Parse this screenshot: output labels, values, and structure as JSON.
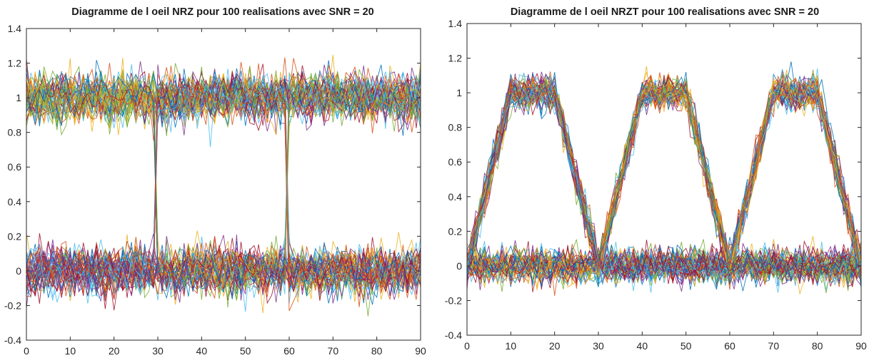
{
  "chart_data": [
    {
      "type": "line",
      "title": "Diagramme de l oeil NRZ pour 100 realisations avec SNR = 20",
      "xlabel": "",
      "ylabel": "",
      "xlim": [
        0,
        90
      ],
      "ylim": [
        -0.4,
        1.4
      ],
      "xticks": [
        "0",
        "10",
        "20",
        "30",
        "40",
        "50",
        "60",
        "70",
        "80",
        "90"
      ],
      "yticks": [
        "-0.4",
        "-0.2",
        "0",
        "0.2",
        "0.4",
        "0.6",
        "0.8",
        "1",
        "1.2",
        "1.4"
      ],
      "grid": false,
      "realisations": 100,
      "signal": "NRZ",
      "levels": [
        0,
        1
      ],
      "noise_std": 0.07,
      "transitions_x": [
        30,
        60
      ],
      "line_colors": [
        "#0072BD",
        "#D95319",
        "#EDB120",
        "#7E2F8E",
        "#77AC30",
        "#4DBEEE",
        "#A2142F"
      ]
    },
    {
      "type": "line",
      "title": "Diagramme de l oeil NRZT pour 100 realisations avec SNR = 20",
      "xlabel": "",
      "ylabel": "",
      "xlim": [
        0,
        90
      ],
      "ylim": [
        -0.4,
        1.4
      ],
      "xticks": [
        "0",
        "10",
        "20",
        "30",
        "40",
        "50",
        "60",
        "70",
        "80",
        "90"
      ],
      "yticks": [
        "-0.4",
        "-0.2",
        "0",
        "0.2",
        "0.4",
        "0.6",
        "0.8",
        "1",
        "1.2",
        "1.4"
      ],
      "grid": false,
      "realisations": 100,
      "signal": "NRZT",
      "levels": [
        0,
        1
      ],
      "noise_std": 0.05,
      "rise_start_x": [
        0,
        30,
        60
      ],
      "rise_end_x": [
        10,
        40,
        70
      ],
      "fall_start_x": [
        20,
        50,
        80
      ],
      "fall_end_x": [
        30,
        60,
        90
      ],
      "line_colors": [
        "#0072BD",
        "#D95319",
        "#EDB120",
        "#7E2F8E",
        "#77AC30",
        "#4DBEEE",
        "#A2142F"
      ]
    }
  ]
}
